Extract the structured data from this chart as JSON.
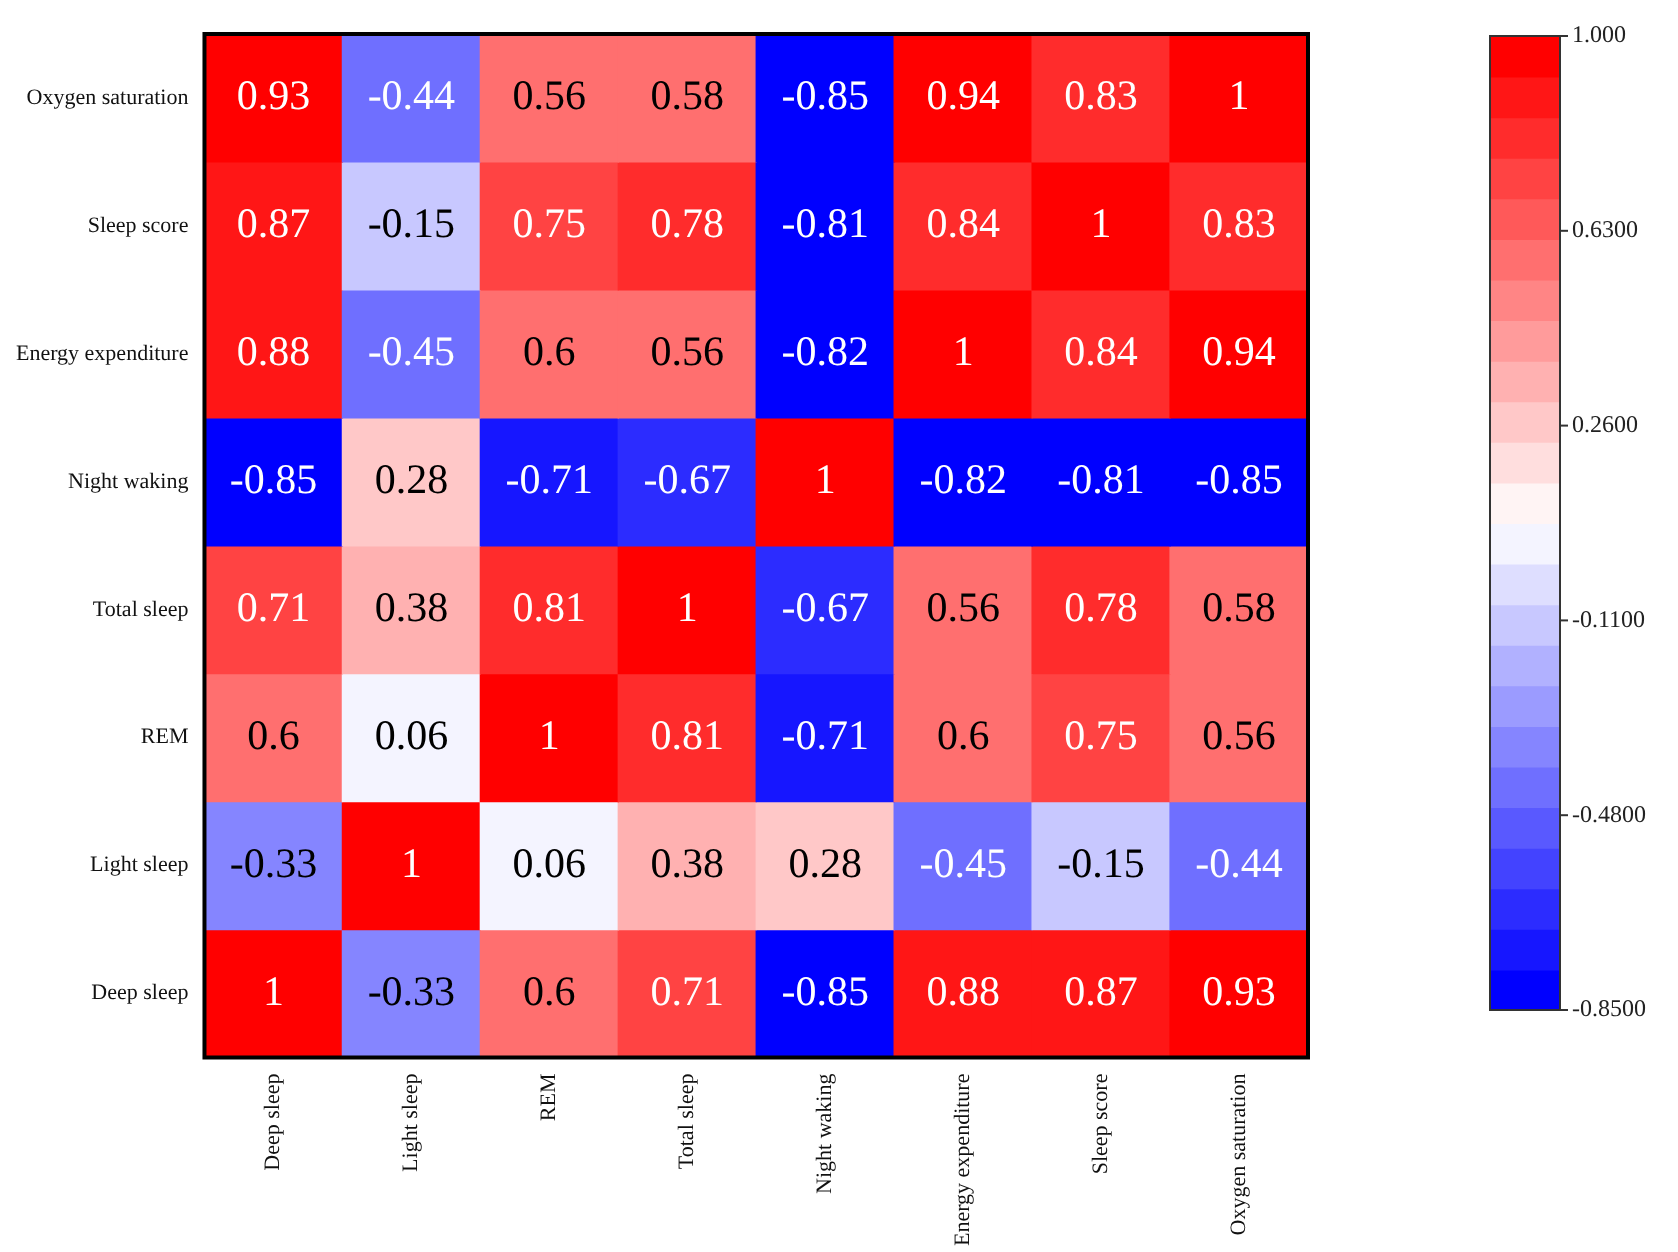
{
  "chart_data": {
    "type": "heatmap",
    "categories": [
      "Deep sleep",
      "Light sleep",
      "REM",
      "Total sleep",
      "Night waking",
      "Energy expenditure",
      "Sleep score",
      "Oxygen saturation"
    ],
    "y_categories": [
      "Oxygen saturation",
      "Sleep score",
      "Energy expenditure",
      "Night waking",
      "Total sleep",
      "REM",
      "Light sleep",
      "Deep sleep"
    ],
    "cells": [
      [
        0.93,
        -0.44,
        0.56,
        0.58,
        -0.85,
        0.94,
        0.83,
        1
      ],
      [
        0.87,
        -0.15,
        0.75,
        0.78,
        -0.81,
        0.84,
        1,
        0.83
      ],
      [
        0.88,
        -0.45,
        0.6,
        0.56,
        -0.82,
        1,
        0.84,
        0.94
      ],
      [
        -0.85,
        0.28,
        -0.71,
        -0.67,
        1,
        -0.82,
        -0.81,
        -0.85
      ],
      [
        0.71,
        0.38,
        0.81,
        1,
        -0.67,
        0.56,
        0.78,
        0.58
      ],
      [
        0.6,
        0.06,
        1,
        0.81,
        -0.71,
        0.6,
        0.75,
        0.56
      ],
      [
        -0.33,
        1,
        0.06,
        0.38,
        0.28,
        -0.45,
        -0.15,
        -0.44
      ],
      [
        1,
        -0.33,
        0.6,
        0.71,
        -0.85,
        0.88,
        0.87,
        0.93
      ]
    ],
    "clim": [
      -0.85,
      1
    ],
    "cticks": [
      {
        "value": -0.85,
        "label": "-0.8500"
      },
      {
        "value": -0.48,
        "label": "-0.4800"
      },
      {
        "value": -0.11,
        "label": "-0.1100"
      },
      {
        "value": 0.26,
        "label": "0.2600"
      },
      {
        "value": 0.63,
        "label": "0.6300"
      },
      {
        "value": 1,
        "label": "1.000"
      }
    ],
    "data_labels": true,
    "grid": false,
    "legend": false
  }
}
